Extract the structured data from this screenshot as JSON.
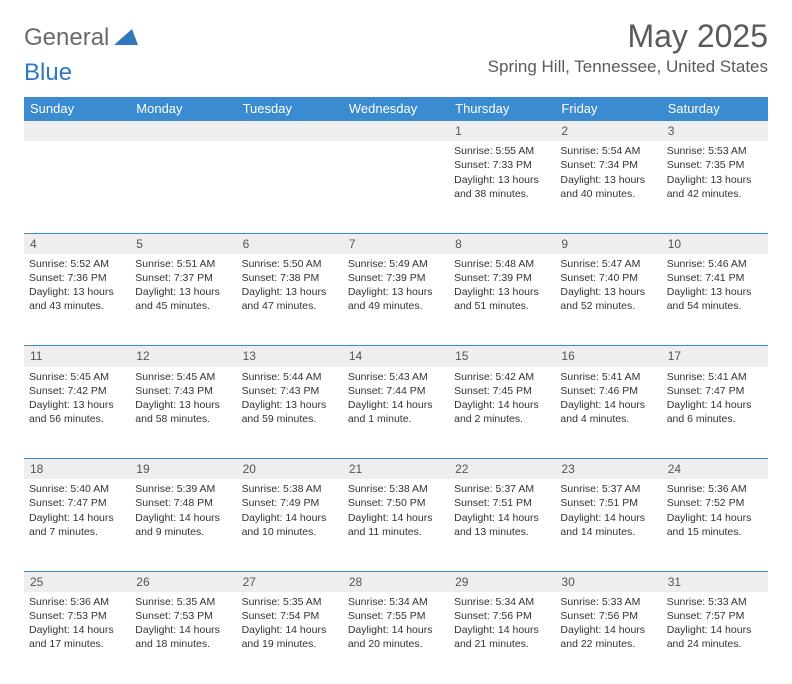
{
  "logo": {
    "general": "General",
    "blue": "Blue"
  },
  "title": "May 2025",
  "location": "Spring Hill, Tennessee, United States",
  "colors": {
    "header_bg": "#3b8bd0",
    "header_text": "#ffffff",
    "daynum_bg": "#eeeeee",
    "border": "#3b8bd0",
    "logo_gray": "#6a6a6a",
    "logo_blue": "#2f78c0"
  },
  "day_headers": [
    "Sunday",
    "Monday",
    "Tuesday",
    "Wednesday",
    "Thursday",
    "Friday",
    "Saturday"
  ],
  "weeks": [
    [
      null,
      null,
      null,
      null,
      {
        "n": "1",
        "sunrise": "5:55 AM",
        "sunset": "7:33 PM",
        "dl": "13 hours and 38 minutes."
      },
      {
        "n": "2",
        "sunrise": "5:54 AM",
        "sunset": "7:34 PM",
        "dl": "13 hours and 40 minutes."
      },
      {
        "n": "3",
        "sunrise": "5:53 AM",
        "sunset": "7:35 PM",
        "dl": "13 hours and 42 minutes."
      }
    ],
    [
      {
        "n": "4",
        "sunrise": "5:52 AM",
        "sunset": "7:36 PM",
        "dl": "13 hours and 43 minutes."
      },
      {
        "n": "5",
        "sunrise": "5:51 AM",
        "sunset": "7:37 PM",
        "dl": "13 hours and 45 minutes."
      },
      {
        "n": "6",
        "sunrise": "5:50 AM",
        "sunset": "7:38 PM",
        "dl": "13 hours and 47 minutes."
      },
      {
        "n": "7",
        "sunrise": "5:49 AM",
        "sunset": "7:39 PM",
        "dl": "13 hours and 49 minutes."
      },
      {
        "n": "8",
        "sunrise": "5:48 AM",
        "sunset": "7:39 PM",
        "dl": "13 hours and 51 minutes."
      },
      {
        "n": "9",
        "sunrise": "5:47 AM",
        "sunset": "7:40 PM",
        "dl": "13 hours and 52 minutes."
      },
      {
        "n": "10",
        "sunrise": "5:46 AM",
        "sunset": "7:41 PM",
        "dl": "13 hours and 54 minutes."
      }
    ],
    [
      {
        "n": "11",
        "sunrise": "5:45 AM",
        "sunset": "7:42 PM",
        "dl": "13 hours and 56 minutes."
      },
      {
        "n": "12",
        "sunrise": "5:45 AM",
        "sunset": "7:43 PM",
        "dl": "13 hours and 58 minutes."
      },
      {
        "n": "13",
        "sunrise": "5:44 AM",
        "sunset": "7:43 PM",
        "dl": "13 hours and 59 minutes."
      },
      {
        "n": "14",
        "sunrise": "5:43 AM",
        "sunset": "7:44 PM",
        "dl": "14 hours and 1 minute."
      },
      {
        "n": "15",
        "sunrise": "5:42 AM",
        "sunset": "7:45 PM",
        "dl": "14 hours and 2 minutes."
      },
      {
        "n": "16",
        "sunrise": "5:41 AM",
        "sunset": "7:46 PM",
        "dl": "14 hours and 4 minutes."
      },
      {
        "n": "17",
        "sunrise": "5:41 AM",
        "sunset": "7:47 PM",
        "dl": "14 hours and 6 minutes."
      }
    ],
    [
      {
        "n": "18",
        "sunrise": "5:40 AM",
        "sunset": "7:47 PM",
        "dl": "14 hours and 7 minutes."
      },
      {
        "n": "19",
        "sunrise": "5:39 AM",
        "sunset": "7:48 PM",
        "dl": "14 hours and 9 minutes."
      },
      {
        "n": "20",
        "sunrise": "5:38 AM",
        "sunset": "7:49 PM",
        "dl": "14 hours and 10 minutes."
      },
      {
        "n": "21",
        "sunrise": "5:38 AM",
        "sunset": "7:50 PM",
        "dl": "14 hours and 11 minutes."
      },
      {
        "n": "22",
        "sunrise": "5:37 AM",
        "sunset": "7:51 PM",
        "dl": "14 hours and 13 minutes."
      },
      {
        "n": "23",
        "sunrise": "5:37 AM",
        "sunset": "7:51 PM",
        "dl": "14 hours and 14 minutes."
      },
      {
        "n": "24",
        "sunrise": "5:36 AM",
        "sunset": "7:52 PM",
        "dl": "14 hours and 15 minutes."
      }
    ],
    [
      {
        "n": "25",
        "sunrise": "5:36 AM",
        "sunset": "7:53 PM",
        "dl": "14 hours and 17 minutes."
      },
      {
        "n": "26",
        "sunrise": "5:35 AM",
        "sunset": "7:53 PM",
        "dl": "14 hours and 18 minutes."
      },
      {
        "n": "27",
        "sunrise": "5:35 AM",
        "sunset": "7:54 PM",
        "dl": "14 hours and 19 minutes."
      },
      {
        "n": "28",
        "sunrise": "5:34 AM",
        "sunset": "7:55 PM",
        "dl": "14 hours and 20 minutes."
      },
      {
        "n": "29",
        "sunrise": "5:34 AM",
        "sunset": "7:56 PM",
        "dl": "14 hours and 21 minutes."
      },
      {
        "n": "30",
        "sunrise": "5:33 AM",
        "sunset": "7:56 PM",
        "dl": "14 hours and 22 minutes."
      },
      {
        "n": "31",
        "sunrise": "5:33 AM",
        "sunset": "7:57 PM",
        "dl": "14 hours and 24 minutes."
      }
    ]
  ]
}
